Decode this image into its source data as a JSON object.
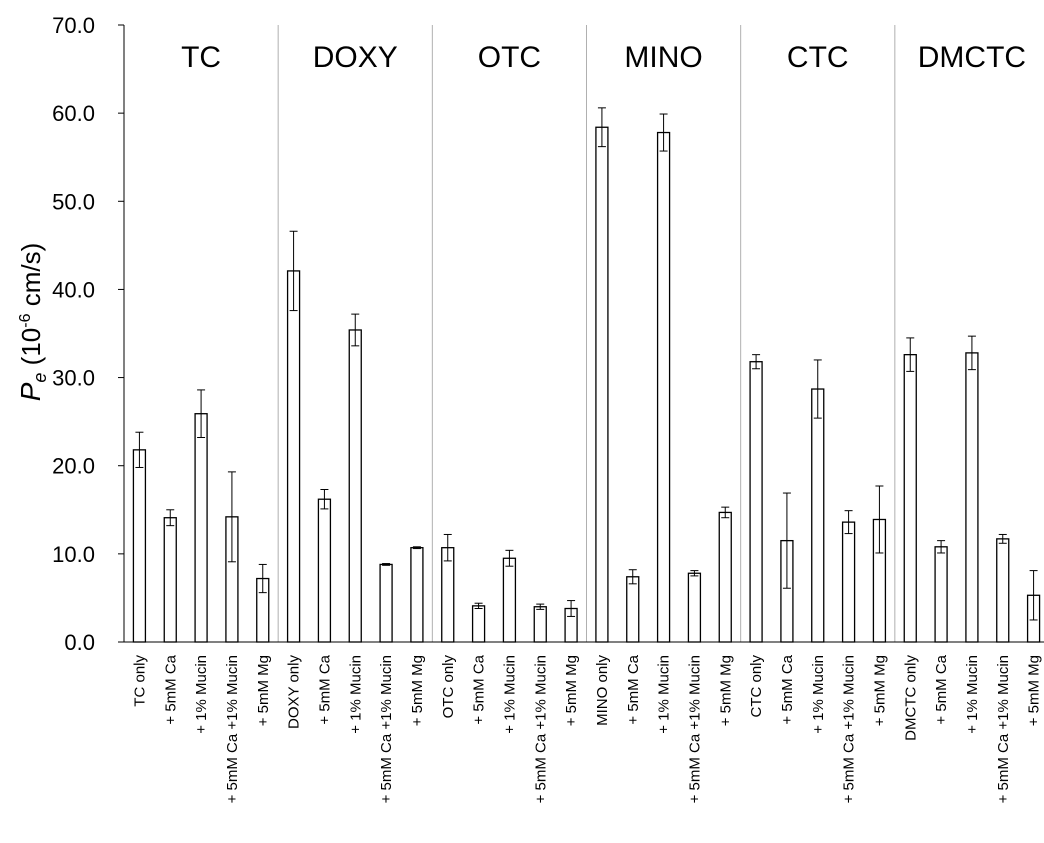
{
  "chart_data": {
    "type": "bar",
    "ylabel_main": "P",
    "ylabel_sub": "e",
    "ylabel_unit_pre": " (10",
    "ylabel_unit_sup": "-6",
    "ylabel_unit_post": " cm/s)",
    "ylim": [
      0,
      70
    ],
    "yticks": [
      "0.0",
      "10.0",
      "20.0",
      "30.0",
      "40.0",
      "50.0",
      "60.0",
      "70.0"
    ],
    "grid": false,
    "groups": [
      {
        "name": "TC",
        "categories": [
          "TC only",
          "+ 5mM Ca",
          "+ 1% Mucin",
          "+ 5mM Ca +1% Mucin",
          "+ 5mM Mg"
        ],
        "values": [
          21.8,
          14.1,
          25.9,
          14.2,
          7.2
        ],
        "errors": [
          2.0,
          0.9,
          2.7,
          5.1,
          1.6
        ]
      },
      {
        "name": "DOXY",
        "categories": [
          "DOXY only",
          "+ 5mM Ca",
          "+ 1% Mucin",
          "+ 5mM Ca +1% Mucin",
          "+ 5mM Mg"
        ],
        "values": [
          42.1,
          16.2,
          35.4,
          8.8,
          10.7
        ],
        "errors": [
          4.5,
          1.1,
          1.8,
          0.1,
          0.1
        ]
      },
      {
        "name": "OTC",
        "categories": [
          "OTC only",
          "+ 5mM Ca",
          "+ 1% Mucin",
          "+ 5mM Ca +1% Mucin",
          "+ 5mM Mg"
        ],
        "values": [
          10.7,
          4.1,
          9.5,
          4.0,
          3.8
        ],
        "errors": [
          1.5,
          0.3,
          0.9,
          0.3,
          0.9
        ]
      },
      {
        "name": "MINO",
        "categories": [
          "MINO only",
          "+ 5mM Ca",
          "+ 1% Mucin",
          "+ 5mM Ca +1% Mucin",
          "+ 5mM Mg"
        ],
        "values": [
          58.4,
          7.4,
          57.8,
          7.8,
          14.7
        ],
        "errors": [
          2.2,
          0.8,
          2.1,
          0.3,
          0.6
        ]
      },
      {
        "name": "CTC",
        "categories": [
          "CTC only",
          "+ 5mM Ca",
          "+ 1% Mucin",
          "+ 5mM Ca +1% Mucin",
          "+ 5mM Mg"
        ],
        "values": [
          31.8,
          11.5,
          28.7,
          13.6,
          13.9
        ],
        "errors": [
          0.8,
          5.4,
          3.3,
          1.3,
          3.8
        ]
      },
      {
        "name": "DMCTC",
        "categories": [
          "DMCTC only",
          "+ 5mM Ca",
          "+ 1% Mucin",
          "+ 5mM Ca +1% Mucin",
          "+ 5mM Mg"
        ],
        "values": [
          32.6,
          10.8,
          32.8,
          11.7,
          5.3
        ],
        "errors": [
          1.9,
          0.7,
          1.9,
          0.5,
          2.8
        ]
      }
    ]
  }
}
